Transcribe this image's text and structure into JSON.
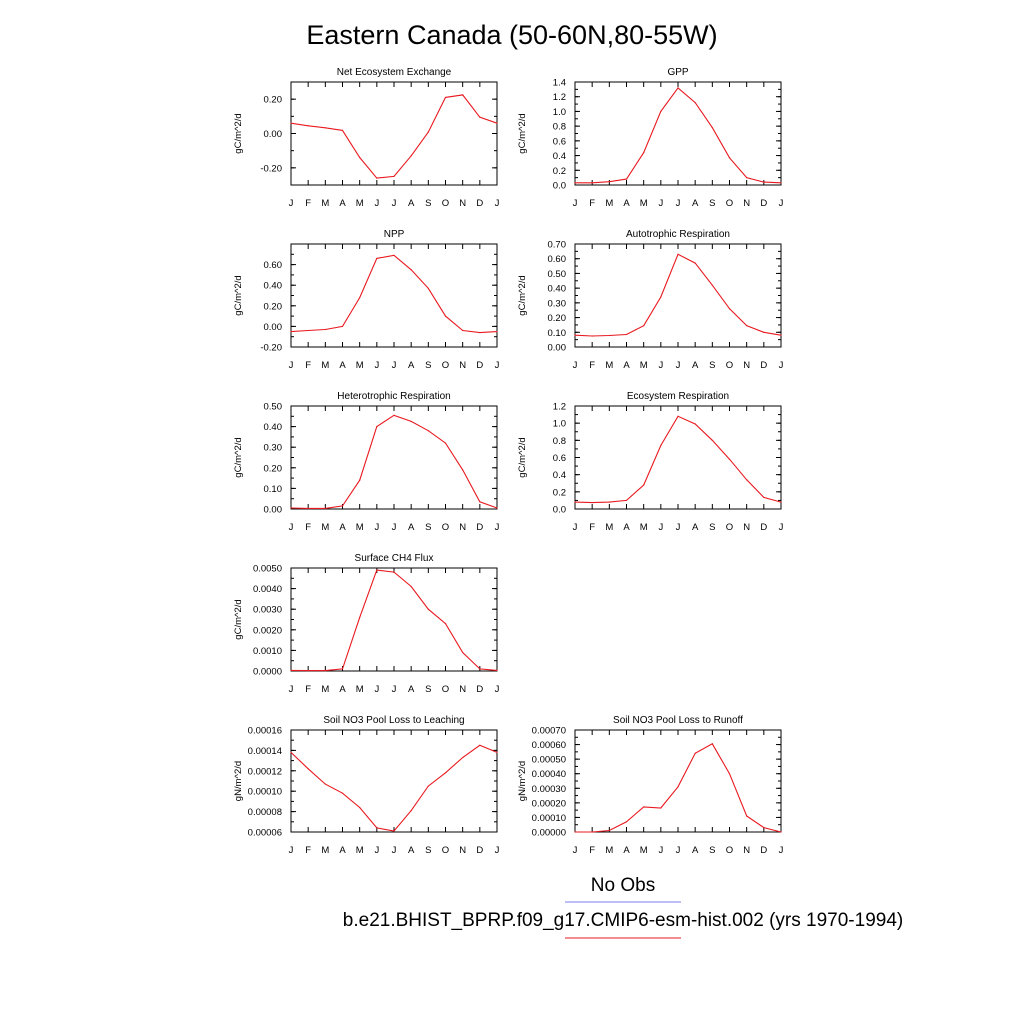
{
  "figure": {
    "title": "Eastern Canada (50-60N,80-55W)",
    "line_color": "#e8191f",
    "obs_color": "#7b7bf0"
  },
  "legend": {
    "obs_label": "No Obs",
    "model_label": "b.e21.BHIST_BPRP.f09_g17.CMIP6-esm-hist.002 (yrs 1970-1994)"
  },
  "chart_data": [
    {
      "type": "line",
      "title": "Net Ecosystem Exchange",
      "ylabel": "gC/m^2/d",
      "x": [
        "J",
        "F",
        "M",
        "A",
        "M",
        "J",
        "J",
        "A",
        "S",
        "O",
        "N",
        "D",
        "J"
      ],
      "ylim": [
        -0.3,
        0.3
      ],
      "yticks": [
        -0.2,
        0.0,
        0.2
      ],
      "ytick_labels": [
        "-0.20",
        "0.00",
        "0.20"
      ],
      "series": [
        {
          "values": [
            0.06,
            0.045,
            0.033,
            0.018,
            -0.14,
            -0.26,
            -0.25,
            -0.13,
            0.008,
            0.21,
            0.225,
            0.095,
            0.06
          ]
        }
      ]
    },
    {
      "type": "line",
      "title": "GPP",
      "ylabel": "gC/m^2/d",
      "x": [
        "J",
        "F",
        "M",
        "A",
        "M",
        "J",
        "J",
        "A",
        "S",
        "O",
        "N",
        "D",
        "J"
      ],
      "ylim": [
        0.0,
        1.4
      ],
      "yticks": [
        0.0,
        0.2,
        0.4,
        0.6,
        0.8,
        1.0,
        1.2,
        1.4
      ],
      "ytick_labels": [
        "0.0",
        "0.2",
        "0.4",
        "0.6",
        "0.8",
        "1.0",
        "1.2",
        "1.4"
      ],
      "series": [
        {
          "values": [
            0.03,
            0.03,
            0.045,
            0.08,
            0.44,
            1.0,
            1.32,
            1.12,
            0.78,
            0.37,
            0.1,
            0.04,
            0.03
          ]
        }
      ]
    },
    {
      "type": "line",
      "title": "NPP",
      "ylabel": "gC/m^2/d",
      "x": [
        "J",
        "F",
        "M",
        "A",
        "M",
        "J",
        "J",
        "A",
        "S",
        "O",
        "N",
        "D",
        "J"
      ],
      "ylim": [
        -0.2,
        0.8
      ],
      "yticks": [
        -0.2,
        0.0,
        0.2,
        0.4,
        0.6
      ],
      "ytick_labels": [
        "-0.20",
        "0.00",
        "0.20",
        "0.40",
        "0.60"
      ],
      "series": [
        {
          "values": [
            -0.05,
            -0.04,
            -0.03,
            0.0,
            0.28,
            0.66,
            0.69,
            0.55,
            0.37,
            0.1,
            -0.04,
            -0.06,
            -0.05
          ]
        }
      ]
    },
    {
      "type": "line",
      "title": "Autotrophic Respiration",
      "ylabel": "gC/m^2/d",
      "x": [
        "J",
        "F",
        "M",
        "A",
        "M",
        "J",
        "J",
        "A",
        "S",
        "O",
        "N",
        "D",
        "J"
      ],
      "ylim": [
        0.0,
        0.7
      ],
      "yticks": [
        0.0,
        0.1,
        0.2,
        0.3,
        0.4,
        0.5,
        0.6,
        0.7
      ],
      "ytick_labels": [
        "0.00",
        "0.10",
        "0.20",
        "0.30",
        "0.40",
        "0.50",
        "0.60",
        "0.70"
      ],
      "series": [
        {
          "values": [
            0.08,
            0.075,
            0.078,
            0.085,
            0.145,
            0.34,
            0.63,
            0.57,
            0.42,
            0.26,
            0.145,
            0.1,
            0.08
          ]
        }
      ]
    },
    {
      "type": "line",
      "title": "Heterotrophic Respiration",
      "ylabel": "gC/m^2/d",
      "x": [
        "J",
        "F",
        "M",
        "A",
        "M",
        "J",
        "J",
        "A",
        "S",
        "O",
        "N",
        "D",
        "J"
      ],
      "ylim": [
        0.0,
        0.5
      ],
      "yticks": [
        0.0,
        0.1,
        0.2,
        0.3,
        0.4,
        0.5
      ],
      "ytick_labels": [
        "0.00",
        "0.10",
        "0.20",
        "0.30",
        "0.40",
        "0.50"
      ],
      "series": [
        {
          "values": [
            0.005,
            0.003,
            0.003,
            0.015,
            0.14,
            0.4,
            0.455,
            0.425,
            0.38,
            0.32,
            0.19,
            0.035,
            0.005
          ]
        }
      ]
    },
    {
      "type": "line",
      "title": "Ecosystem Respiration",
      "ylabel": "gC/m^2/d",
      "x": [
        "J",
        "F",
        "M",
        "A",
        "M",
        "J",
        "J",
        "A",
        "S",
        "O",
        "N",
        "D",
        "J"
      ],
      "ylim": [
        0.0,
        1.2
      ],
      "yticks": [
        0.0,
        0.2,
        0.4,
        0.6,
        0.8,
        1.0,
        1.2
      ],
      "ytick_labels": [
        "0.0",
        "0.2",
        "0.4",
        "0.6",
        "0.8",
        "1.0",
        "1.2"
      ],
      "series": [
        {
          "values": [
            0.08,
            0.075,
            0.08,
            0.1,
            0.28,
            0.74,
            1.08,
            0.99,
            0.8,
            0.58,
            0.34,
            0.135,
            0.08
          ]
        }
      ]
    },
    {
      "type": "line",
      "title": "Surface CH4 Flux",
      "ylabel": "gC/m^2/d",
      "x": [
        "J",
        "F",
        "M",
        "A",
        "M",
        "J",
        "J",
        "A",
        "S",
        "O",
        "N",
        "D",
        "J"
      ],
      "ylim": [
        0.0,
        0.005
      ],
      "yticks": [
        0.0,
        0.001,
        0.002,
        0.003,
        0.004,
        0.005
      ],
      "ytick_labels": [
        "0.0000",
        "0.0010",
        "0.0020",
        "0.0030",
        "0.0040",
        "0.0050"
      ],
      "series": [
        {
          "values": [
            3e-05,
            2e-05,
            2e-05,
            0.0001,
            0.0026,
            0.0049,
            0.0048,
            0.0041,
            0.003,
            0.0023,
            0.0009,
            0.0001,
            3e-05
          ]
        }
      ]
    },
    {
      "type": "line",
      "title": "Soil NO3 Pool Loss to Leaching",
      "ylabel": "gN/m^2/d",
      "x": [
        "J",
        "F",
        "M",
        "A",
        "M",
        "J",
        "J",
        "A",
        "S",
        "O",
        "N",
        "D",
        "J"
      ],
      "ylim": [
        6e-05,
        0.00016
      ],
      "yticks": [
        6e-05,
        8e-05,
        0.0001,
        0.00012,
        0.00014,
        0.00016
      ],
      "ytick_labels": [
        "0.00006",
        "0.00008",
        "0.00010",
        "0.00012",
        "0.00014",
        "0.00016"
      ],
      "series": [
        {
          "values": [
            0.000138,
            0.000122,
            0.000107,
            9.8e-05,
            8.4e-05,
            6.4e-05,
            6.1e-05,
            8.1e-05,
            0.000105,
            0.000118,
            0.000133,
            0.000145,
            0.000138
          ]
        }
      ]
    },
    {
      "type": "line",
      "title": "Soil NO3 Pool Loss to Runoff",
      "ylabel": "gN/m^2/d",
      "x": [
        "J",
        "F",
        "M",
        "A",
        "M",
        "J",
        "J",
        "A",
        "S",
        "O",
        "N",
        "D",
        "J"
      ],
      "ylim": [
        0.0,
        0.0007
      ],
      "yticks": [
        0.0,
        0.0001,
        0.0002,
        0.0003,
        0.0004,
        0.0005,
        0.0006,
        0.0007
      ],
      "ytick_labels": [
        "0.00000",
        "0.00010",
        "0.00020",
        "0.00030",
        "0.00040",
        "0.00050",
        "0.00060",
        "0.00070"
      ],
      "series": [
        {
          "values": [
            0.0,
            0.0,
            1e-05,
            7e-05,
            0.000172,
            0.000165,
            0.00031,
            0.00054,
            0.000605,
            0.0004,
            0.00011,
            3e-05,
            0.0
          ]
        }
      ]
    }
  ]
}
